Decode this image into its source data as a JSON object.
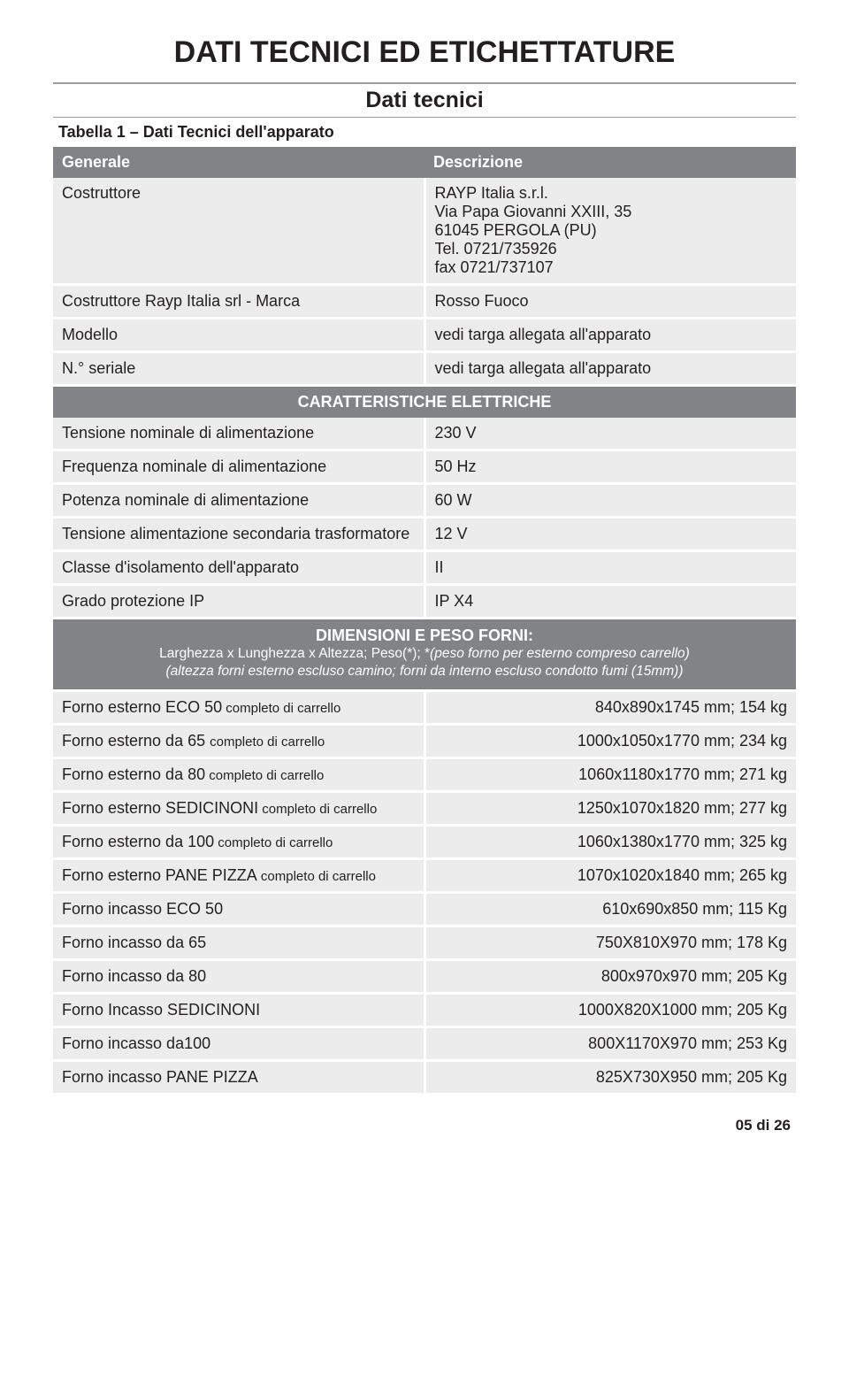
{
  "page_title": "DATI TECNICI ED ETICHETTATURE",
  "subtitle": "Dati tecnici",
  "table_caption": "Tabella 1 – Dati Tecnici dell'apparato",
  "header": {
    "left": "Generale",
    "right": "Descrizione"
  },
  "general_rows": [
    {
      "label": "Costruttore",
      "value": "RAYP Italia s.r.l.\nVia Papa Giovanni XXIII, 35\n61045 PERGOLA (PU)\nTel. 0721/735926\nfax 0721/737107"
    },
    {
      "label": "Costruttore Rayp Italia srl - Marca",
      "value": "Rosso Fuoco"
    },
    {
      "label": "Modello",
      "value": "vedi targa allegata all'apparato"
    },
    {
      "label": "N.° seriale",
      "value": "vedi targa allegata all'apparato"
    }
  ],
  "elec_header": "CARATTERISTICHE ELETTRICHE",
  "elec_rows": [
    {
      "label": "Tensione nominale di alimentazione",
      "value": "230 V"
    },
    {
      "label": "Frequenza nominale di alimentazione",
      "value": "50 Hz"
    },
    {
      "label": "Potenza nominale di alimentazione",
      "value": "60 W"
    },
    {
      "label": "Tensione alimentazione secondaria trasformatore",
      "value": "12 V"
    },
    {
      "label": "Classe d'isolamento dell'apparato",
      "value": "II"
    },
    {
      "label": "Grado protezione IP",
      "value": "IP X4"
    }
  ],
  "dim_header": {
    "title": "DIMENSIONI E PESO FORNI:",
    "line1_a": "Larghezza x Lunghezza x Altezza; Peso(*); *",
    "line1_b": "(peso forno per esterno compreso carrello)",
    "line2": "(altezza forni esterno escluso camino; forni da interno escluso condotto fumi (15mm))"
  },
  "dim_rows": [
    {
      "label": "Forno esterno ECO 50",
      "sub": " completo di carrello",
      "value": "840x890x1745 mm; 154 kg"
    },
    {
      "label": "Forno esterno da 65 ",
      "sub": " completo di carrello",
      "value": "1000x1050x1770 mm; 234 kg"
    },
    {
      "label": "Forno esterno da 80",
      "sub": " completo di carrello",
      "value": "1060x1180x1770 mm; 271 kg"
    },
    {
      "label": "Forno esterno SEDICINONI",
      "sub": " completo di carrello",
      "value": "1250x1070x1820 mm; 277 kg"
    },
    {
      "label": "Forno esterno da 100",
      "sub": " completo di carrello",
      "value": "1060x1380x1770 mm; 325 kg"
    },
    {
      "label": "Forno esterno PANE PIZZA",
      "sub": " completo di carrello",
      "value": "1070x1020x1840 mm; 265 kg"
    },
    {
      "label": "Forno incasso ECO 50",
      "sub": "",
      "value": "610x690x850 mm; 115 Kg"
    },
    {
      "label": "Forno incasso da 65",
      "sub": "",
      "value": "750X810X970 mm; 178 Kg"
    },
    {
      "label": "Forno incasso da 80",
      "sub": "",
      "value": "800x970x970 mm; 205 Kg"
    },
    {
      "label": "Forno Incasso  SEDICINONI",
      "sub": "",
      "value": "1000X820X1000 mm;  205 Kg"
    },
    {
      "label": "Forno incasso da100",
      "sub": "",
      "value": "800X1170X970 mm; 253 Kg"
    },
    {
      "label": "Forno incasso PANE PIZZA",
      "sub": "",
      "value": "825X730X950 mm; 205 Kg"
    }
  ],
  "page_num": "05 di 26",
  "colors": {
    "header_bg": "#818386",
    "row_bg": "#ececed",
    "text": "#231f20"
  }
}
